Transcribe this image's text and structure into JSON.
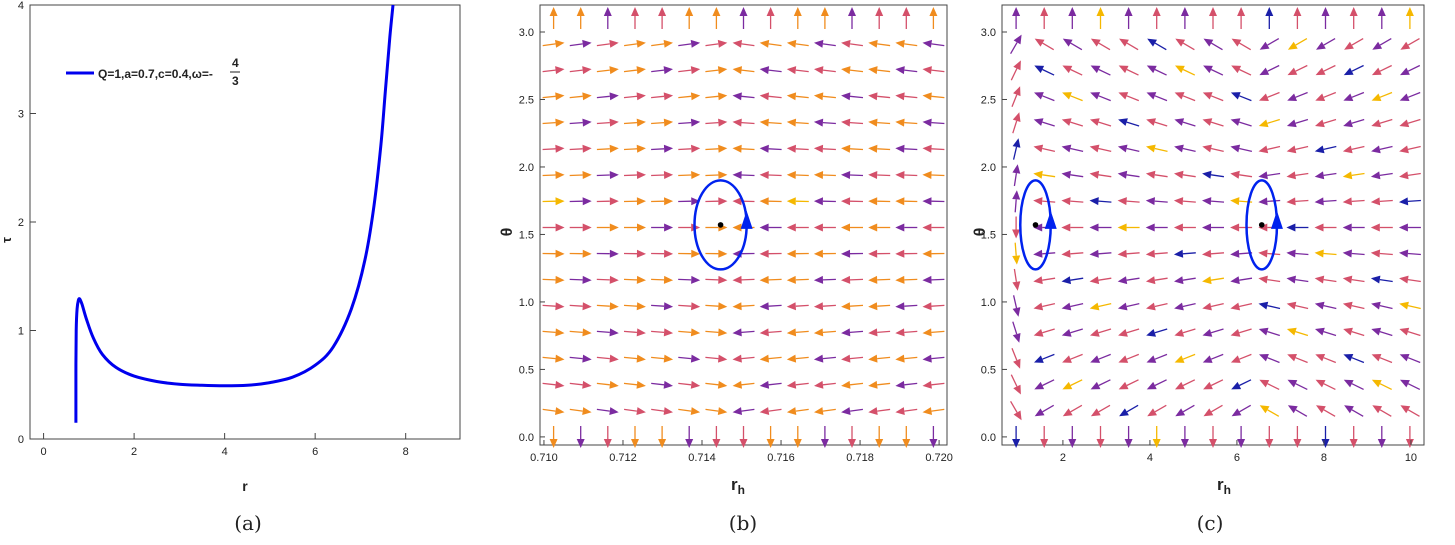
{
  "chart_data": [
    {
      "type": "line",
      "caption": "(a)",
      "xlabel": "r",
      "ylabel": "τ",
      "xlim": [
        -0.3,
        9.2
      ],
      "ylim": [
        0,
        4
      ],
      "xticks": [
        0,
        2,
        4,
        6,
        8
      ],
      "yticks": [
        0,
        1,
        2,
        3,
        4
      ],
      "legend": {
        "text": "Q=1,a=0.7,c=0.4,ω=-",
        "frac_num": "4",
        "frac_den": "3",
        "position": "top-left"
      },
      "series": [
        {
          "color": "#0000ee",
          "x": [
            0.714,
            0.714,
            0.72,
            0.74,
            0.77,
            0.8,
            0.85,
            0.95,
            1.1,
            1.3,
            1.6,
            2.0,
            2.5,
            3.0,
            3.5,
            4.0,
            4.5,
            5.0,
            5.5,
            6.0,
            6.4,
            6.8,
            7.1,
            7.3,
            7.45,
            7.55,
            7.65,
            7.72
          ],
          "y": [
            0.15,
            0.6,
            1.0,
            1.2,
            1.28,
            1.29,
            1.24,
            1.1,
            0.93,
            0.78,
            0.66,
            0.58,
            0.53,
            0.505,
            0.495,
            0.49,
            0.495,
            0.52,
            0.57,
            0.68,
            0.85,
            1.2,
            1.65,
            2.15,
            2.7,
            3.2,
            3.7,
            4.0
          ]
        }
      ]
    },
    {
      "type": "vector-field",
      "caption": "(b)",
      "xlabel": "r",
      "xlabel_sub": "h",
      "ylabel": "θ",
      "xlim": [
        0.7099,
        0.7202
      ],
      "ylim": [
        -0.06,
        3.2
      ],
      "xticks": [
        "0.710",
        "0.712",
        "0.714",
        "0.716",
        "0.718",
        "0.720"
      ],
      "yticks": [
        "0.0",
        "0.5",
        "1.0",
        "1.5",
        "2.0",
        "2.5",
        "3.0"
      ],
      "nx": 15,
      "ny": 17,
      "zero_points": [
        {
          "x": 0.71447,
          "y": 1.5708
        }
      ],
      "contours": [
        {
          "cx": 0.71447,
          "cy": 1.5708,
          "rx": 0.00066,
          "ry": 0.33
        }
      ]
    },
    {
      "type": "vector-field",
      "caption": "(c)",
      "xlabel": "r",
      "xlabel_sub": "h",
      "ylabel": "θ",
      "xlim": [
        0.6,
        10.3
      ],
      "ylim": [
        -0.06,
        3.2
      ],
      "xticks": [
        "2",
        "4",
        "6",
        "8",
        "10"
      ],
      "yticks": [
        "0.0",
        "0.5",
        "1.0",
        "1.5",
        "2.0",
        "2.5",
        "3.0"
      ],
      "nx": 15,
      "ny": 17,
      "zero_points": [
        {
          "x": 1.37,
          "y": 1.5708
        },
        {
          "x": 6.57,
          "y": 1.5708
        }
      ],
      "contours": [
        {
          "cx": 1.37,
          "cy": 1.5708,
          "rx": 0.35,
          "ry": 0.33
        },
        {
          "cx": 6.57,
          "cy": 1.5708,
          "rx": 0.35,
          "ry": 0.33
        }
      ]
    }
  ]
}
